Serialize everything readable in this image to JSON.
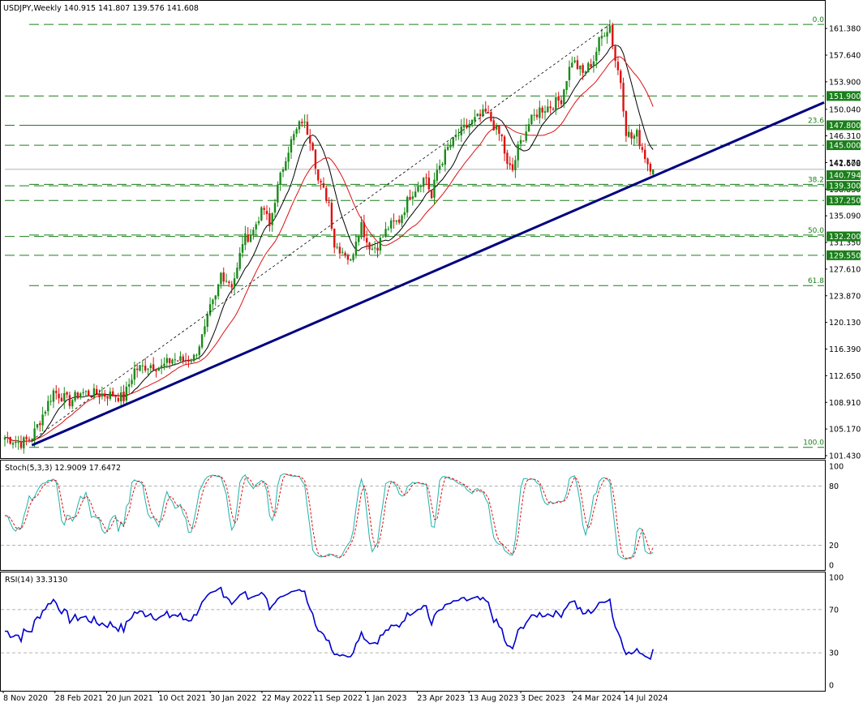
{
  "header": {
    "main": "USDJPY,Weekly  140.915 141.807 139.576 141.608",
    "stoch": "Stoch(5,3,3) 12.9009 17.6472",
    "rsi": "RSI(14) 33.3130"
  },
  "colors": {
    "bull": "#1a8a1a",
    "bear": "#dd1111",
    "ma_fast": "#000000",
    "ma_slow": "#dd1111",
    "trendline": "#000080",
    "level": "#1a7f1a",
    "level_tag_bg": "#1a7f1a",
    "stoch_main": "#20b2aa",
    "stoch_signal": "#dd1111",
    "rsi": "#0000cc"
  },
  "chart_data": {
    "type": "candlestick",
    "symbol": "USDJPY",
    "timeframe": "Weekly",
    "ohlc_last": {
      "open": 140.915,
      "high": 141.807,
      "low": 139.576,
      "close": 141.608
    },
    "price_ylim": [
      101.43,
      163.1
    ],
    "price_ticks": [
      "161.380",
      "157.640",
      "153.900",
      "150.040",
      "146.310",
      "142.570",
      "138.830",
      "135.090",
      "131.350",
      "127.610",
      "123.870",
      "120.130",
      "116.390",
      "112.650",
      "108.910",
      "105.170",
      "101.430"
    ],
    "x_labels": [
      "8 Nov 2020",
      "28 Feb 2021",
      "20 Jun 2021",
      "10 Oct 2021",
      "30 Jan 2022",
      "22 May 2022",
      "11 Sep 2022",
      "1 Jan 2023",
      "23 Apr 2023",
      "13 Aug 2023",
      "3 Dec 2023",
      "24 Mar 2024",
      "14 Jul 2024"
    ],
    "levels": [
      {
        "price": 151.9,
        "label": "151.900"
      },
      {
        "price": 147.8,
        "label": "147.800"
      },
      {
        "price": 145.0,
        "label": "145.000"
      },
      {
        "price": 139.3,
        "label": "139.300"
      },
      {
        "price": 137.25,
        "label": "137.250"
      },
      {
        "price": 132.2,
        "label": "132.200"
      },
      {
        "price": 129.55,
        "label": "129.550"
      }
    ],
    "current_price_label": "141.608",
    "prev_price_label": "140.794",
    "fibonacci": [
      {
        "label": "0.0",
        "price": 161.95
      },
      {
        "label": "23.6",
        "price": 147.8
      },
      {
        "label": "38.2",
        "price": 139.5
      },
      {
        "label": "50.0",
        "price": 132.4
      },
      {
        "label": "61.8",
        "price": 125.3
      },
      {
        "label": "100.0",
        "price": 102.6
      }
    ],
    "waypoints": [
      [
        0,
        104.0
      ],
      [
        6,
        103.2
      ],
      [
        10,
        104.0
      ],
      [
        15,
        108.0
      ],
      [
        18,
        110.5
      ],
      [
        24,
        109.0
      ],
      [
        28,
        110.3
      ],
      [
        36,
        110.0
      ],
      [
        40,
        110.0
      ],
      [
        44,
        109.5
      ],
      [
        48,
        113.5
      ],
      [
        54,
        114.2
      ],
      [
        58,
        113.8
      ],
      [
        62,
        115.0
      ],
      [
        66,
        114.8
      ],
      [
        70,
        115.2
      ],
      [
        74,
        119.0
      ],
      [
        76,
        122.0
      ],
      [
        78,
        123.5
      ],
      [
        80,
        127.0
      ],
      [
        84,
        125.5
      ],
      [
        86,
        127.5
      ],
      [
        88,
        131.5
      ],
      [
        92,
        133.0
      ],
      [
        94,
        135.0
      ],
      [
        96,
        136.0
      ],
      [
        98,
        133.5
      ],
      [
        100,
        137.5
      ],
      [
        104,
        143.5
      ],
      [
        106,
        145.5
      ],
      [
        108,
        147.0
      ],
      [
        110,
        148.5
      ],
      [
        112,
        147.0
      ],
      [
        114,
        145.0
      ],
      [
        116,
        140.0
      ],
      [
        118,
        138.5
      ],
      [
        120,
        137.0
      ],
      [
        122,
        131.0
      ],
      [
        126,
        130.0
      ],
      [
        128,
        128.5
      ],
      [
        130,
        132.0
      ],
      [
        132,
        134.0
      ],
      [
        134,
        131.5
      ],
      [
        136,
        130.5
      ],
      [
        138,
        131.0
      ],
      [
        142,
        133.5
      ],
      [
        146,
        134.5
      ],
      [
        150,
        138.0
      ],
      [
        154,
        140.0
      ],
      [
        156,
        140.5
      ],
      [
        158,
        137.5
      ],
      [
        160,
        141.5
      ],
      [
        164,
        144.5
      ],
      [
        168,
        146.5
      ],
      [
        172,
        148.0
      ],
      [
        176,
        149.0
      ],
      [
        178,
        149.5
      ],
      [
        180,
        148.5
      ],
      [
        182,
        147.0
      ],
      [
        184,
        146.0
      ],
      [
        186,
        142.0
      ],
      [
        188,
        141.5
      ],
      [
        190,
        144.5
      ],
      [
        194,
        148.0
      ],
      [
        198,
        150.0
      ],
      [
        202,
        150.5
      ],
      [
        206,
        151.5
      ],
      [
        208,
        154.5
      ],
      [
        210,
        157.0
      ],
      [
        214,
        155.0
      ],
      [
        218,
        157.0
      ],
      [
        220,
        159.5
      ],
      [
        222,
        161.0
      ],
      [
        224,
        161.8
      ],
      [
        226,
        157.0
      ],
      [
        228,
        154.0
      ],
      [
        230,
        147.0
      ],
      [
        232,
        146.0
      ],
      [
        234,
        146.5
      ],
      [
        236,
        144.5
      ],
      [
        238,
        142.5
      ],
      [
        240,
        141.6
      ]
    ],
    "stochastic": {
      "params": "5,3,3",
      "main": 12.9009,
      "signal": 17.6472,
      "scale": [
        0,
        100
      ],
      "levels": [
        20,
        80
      ],
      "ticks": [
        "100",
        "80",
        "20",
        "0"
      ]
    },
    "rsi": {
      "period": 14,
      "value": 33.313,
      "scale": [
        0,
        100
      ],
      "levels": [
        30,
        70
      ],
      "ticks": [
        "100",
        "70",
        "30",
        "0"
      ]
    }
  }
}
